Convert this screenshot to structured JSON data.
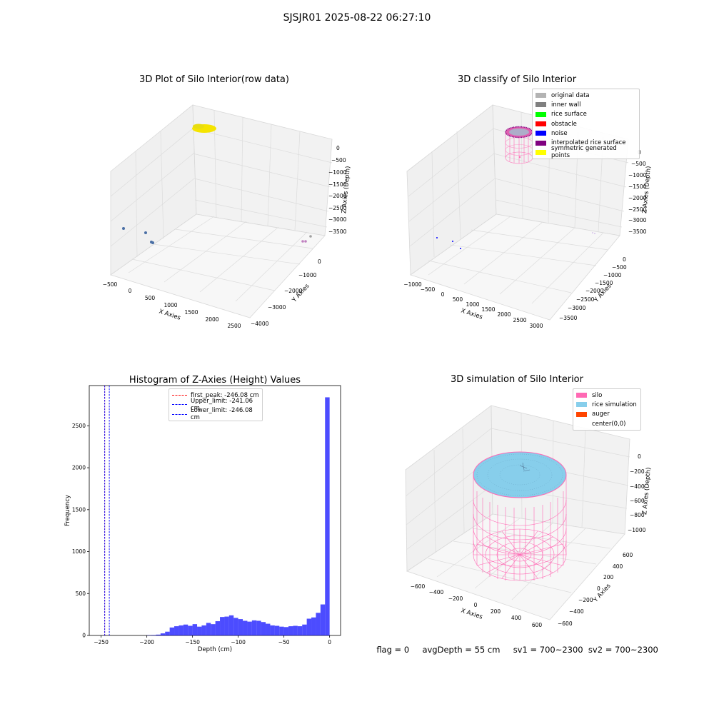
{
  "suptitle": "SJSJR01 2025-08-22 06:27:10",
  "panel1": {
    "title": "3D Plot of Silo Interior(row data)",
    "xlabel": "X Axies",
    "ylabel": "Y Axies",
    "zlabel": "Z Axies (Depth)",
    "xticks": [
      "−500",
      "0",
      "500",
      "1000",
      "1500",
      "2000",
      "2500"
    ],
    "yticks": [
      "0",
      "−1000",
      "−2000",
      "−3000",
      "−4000"
    ],
    "zticks": [
      "0",
      "−500",
      "−1000",
      "−1500",
      "−2000",
      "−2500",
      "−3000",
      "−3500"
    ]
  },
  "panel2": {
    "title": "3D classify of Silo Interior",
    "xlabel": "X Axies",
    "ylabel": "Y Axies",
    "zlabel": "Z Axies (Depth)",
    "xticks": [
      "−1000",
      "−500",
      "0",
      "500",
      "1000",
      "1500",
      "2000",
      "2500",
      "3000"
    ],
    "yticks": [
      "0",
      "−500",
      "−1000",
      "−1500",
      "−2000",
      "−2500",
      "−3000",
      "−3500"
    ],
    "zticks": [
      "0",
      "−500",
      "−1000",
      "−1500",
      "−2000",
      "−2500",
      "−3000",
      "−3500"
    ],
    "legend": [
      {
        "label": "original data",
        "color": "#b3b3b3"
      },
      {
        "label": "inner wall",
        "color": "#808080"
      },
      {
        "label": "rice surface",
        "color": "#00ff00"
      },
      {
        "label": "obstacle",
        "color": "#ff0000"
      },
      {
        "label": "noise",
        "color": "#0000ff"
      },
      {
        "label": "interpolated rice surface",
        "color": "#800080"
      },
      {
        "label": "symmetric generated points",
        "color": "#ffff00"
      }
    ]
  },
  "panel4": {
    "title": "3D simulation of Silo Interior",
    "xlabel": "X Axies",
    "ylabel": "Y Axies",
    "zlabel": "Z Axies (Depth)",
    "xticks": [
      "−600",
      "−400",
      "−200",
      "0",
      "200",
      "400",
      "600"
    ],
    "yticks": [
      "600",
      "400",
      "200",
      "0",
      "−200",
      "−400",
      "−600"
    ],
    "zticks": [
      "0",
      "−200",
      "−400",
      "−600",
      "−800",
      "−1000"
    ],
    "legend": [
      {
        "label": "silo",
        "color": "#ff69b4"
      },
      {
        "label": "rice simulation",
        "color": "#87ceeb"
      },
      {
        "label": "auger",
        "color": "#ff4500"
      },
      {
        "label": "center(0,0)",
        "color": "#ffffff"
      }
    ]
  },
  "status": {
    "flag": "flag = 0",
    "avg": "avgDepth = 55 cm",
    "sv1": "sv1 = 700~2300",
    "sv2": "sv2 = 700~2300"
  },
  "chart_data": {
    "type": "bar",
    "title": "Histogram of Z-Axies (Height) Values",
    "xlabel": "Depth (cm)",
    "ylabel": "Frequency",
    "xlim": [
      -263,
      12
    ],
    "ylim": [
      0,
      2980
    ],
    "xticks": [
      -250,
      -200,
      -150,
      -100,
      -50,
      0
    ],
    "yticks": [
      0,
      500,
      1000,
      1500,
      2000,
      2500
    ],
    "bar_color": "#0000ff",
    "bin_width": 5,
    "bins_start": [
      -200,
      -195,
      -190,
      -185,
      -180,
      -175,
      -170,
      -165,
      -160,
      -155,
      -150,
      -145,
      -140,
      -135,
      -130,
      -125,
      -120,
      -115,
      -110,
      -105,
      -100,
      -95,
      -90,
      -85,
      -80,
      -75,
      -70,
      -65,
      -60,
      -55,
      -50,
      -45,
      -40,
      -35,
      -30,
      -25,
      -20,
      -15,
      -10,
      -5
    ],
    "values": [
      3,
      5,
      10,
      25,
      45,
      95,
      110,
      120,
      130,
      115,
      135,
      105,
      120,
      150,
      135,
      170,
      220,
      225,
      240,
      210,
      195,
      175,
      165,
      180,
      175,
      160,
      140,
      120,
      115,
      105,
      100,
      110,
      115,
      110,
      130,
      200,
      215,
      270,
      370,
      2840
    ],
    "lines": [
      {
        "label": "first_peak: -246.08 cm",
        "x": -246.08,
        "color": "#ff0000"
      },
      {
        "label": "Upper_limit: -241.06 cm",
        "x": -241.06,
        "color": "#0000ff"
      },
      {
        "label": "Lower_limit: -246.08 cm",
        "x": -246.08,
        "color": "#0000ff"
      }
    ]
  }
}
